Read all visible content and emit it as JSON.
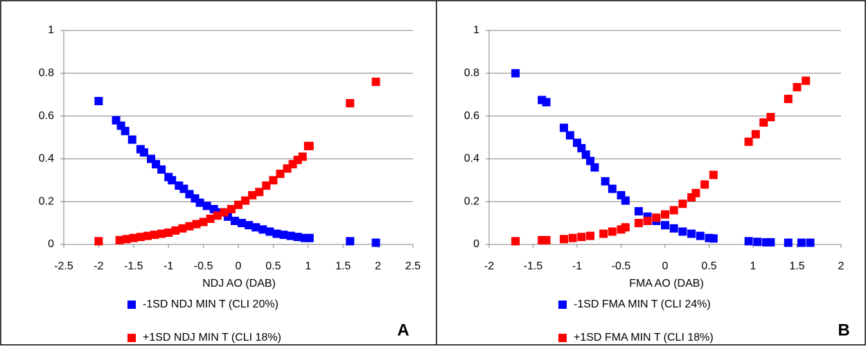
{
  "chart_data": [
    {
      "type": "scatter",
      "xlabel": "NDJ  AO  (DAB)",
      "panel_label": "A",
      "xlim": [
        -2.5,
        2.5
      ],
      "xticks": [
        -2.5,
        -2,
        -1.5,
        -1,
        -0.5,
        0,
        0.5,
        1,
        1.5,
        2,
        2.5
      ],
      "ylim": [
        0,
        1
      ],
      "yticks": [
        0,
        0.2,
        0.4,
        0.6,
        0.8,
        1
      ],
      "grid": true,
      "series": [
        {
          "name": "-1SD NDJ MIN T (CLI 20%)",
          "color": "#0000ff",
          "x": [
            -2,
            -1.75,
            -1.68,
            -1.62,
            -1.52,
            -1.4,
            -1.35,
            -1.25,
            -1.18,
            -1.1,
            -1.0,
            -0.95,
            -0.85,
            -0.78,
            -0.7,
            -0.62,
            -0.55,
            -0.45,
            -0.35,
            -0.25,
            -0.15,
            -0.05,
            0.05,
            0.15,
            0.25,
            0.35,
            0.45,
            0.55,
            0.65,
            0.75,
            0.85,
            0.95,
            1.02,
            1.6,
            1.97
          ],
          "values": [
            0.67,
            0.58,
            0.555,
            0.53,
            0.49,
            0.445,
            0.43,
            0.4,
            0.375,
            0.35,
            0.315,
            0.3,
            0.275,
            0.26,
            0.235,
            0.215,
            0.195,
            0.18,
            0.165,
            0.15,
            0.13,
            0.11,
            0.1,
            0.09,
            0.08,
            0.07,
            0.06,
            0.05,
            0.045,
            0.04,
            0.035,
            0.03,
            0.03,
            0.015,
            0.008
          ]
        },
        {
          "name": "+1SD NDJ MIN T (CLI 18%)",
          "color": "#ff0000",
          "x": [
            -2,
            -1.7,
            -1.6,
            -1.5,
            -1.4,
            -1.3,
            -1.2,
            -1.1,
            -1.0,
            -0.9,
            -0.8,
            -0.7,
            -0.6,
            -0.5,
            -0.4,
            -0.3,
            -0.2,
            -0.1,
            0,
            0.1,
            0.2,
            0.3,
            0.4,
            0.5,
            0.6,
            0.7,
            0.78,
            0.85,
            0.92,
            1.0,
            1.02,
            1.6,
            1.97
          ],
          "values": [
            0.015,
            0.02,
            0.025,
            0.03,
            0.035,
            0.04,
            0.045,
            0.05,
            0.055,
            0.065,
            0.075,
            0.085,
            0.095,
            0.105,
            0.12,
            0.135,
            0.15,
            0.165,
            0.185,
            0.205,
            0.23,
            0.245,
            0.275,
            0.3,
            0.33,
            0.355,
            0.375,
            0.395,
            0.41,
            0.46,
            0.46,
            0.66,
            0.76
          ]
        }
      ]
    },
    {
      "type": "scatter",
      "xlabel": "FMA  AO  (DAB)",
      "panel_label": "B",
      "xlim": [
        -2,
        2
      ],
      "xticks": [
        -2,
        -1.5,
        -1,
        -0.5,
        0,
        0.5,
        1,
        1.5,
        2
      ],
      "ylim": [
        0,
        1
      ],
      "yticks": [
        0,
        0.2,
        0.4,
        0.6,
        0.8,
        1
      ],
      "grid": true,
      "series": [
        {
          "name": "-1SD FMA MIN T (CLI 24%)",
          "color": "#0000ff",
          "x": [
            -1.7,
            -1.4,
            -1.35,
            -1.15,
            -1.08,
            -1.0,
            -0.95,
            -0.9,
            -0.85,
            -0.8,
            -0.68,
            -0.6,
            -0.5,
            -0.45,
            -0.3,
            -0.2,
            -0.1,
            0,
            0.1,
            0.2,
            0.3,
            0.4,
            0.5,
            0.55,
            0.95,
            1.05,
            1.15,
            1.2,
            1.4,
            1.55,
            1.65
          ],
          "values": [
            0.8,
            0.675,
            0.665,
            0.545,
            0.51,
            0.475,
            0.45,
            0.42,
            0.39,
            0.36,
            0.295,
            0.26,
            0.23,
            0.205,
            0.155,
            0.13,
            0.11,
            0.09,
            0.075,
            0.06,
            0.05,
            0.04,
            0.03,
            0.028,
            0.015,
            0.012,
            0.01,
            0.01,
            0.008,
            0.008,
            0.008
          ]
        },
        {
          "name": "+1SD FMA MIN T (CLI 18%)",
          "color": "#ff0000",
          "x": [
            -1.7,
            -1.4,
            -1.35,
            -1.15,
            -1.05,
            -0.95,
            -0.85,
            -0.7,
            -0.6,
            -0.5,
            -0.45,
            -0.3,
            -0.2,
            -0.1,
            0,
            0.1,
            0.2,
            0.3,
            0.35,
            0.45,
            0.55,
            0.95,
            1.03,
            1.12,
            1.2,
            1.4,
            1.5,
            1.6
          ],
          "values": [
            0.015,
            0.02,
            0.02,
            0.025,
            0.03,
            0.035,
            0.04,
            0.05,
            0.06,
            0.07,
            0.08,
            0.1,
            0.11,
            0.125,
            0.14,
            0.16,
            0.19,
            0.22,
            0.24,
            0.28,
            0.325,
            0.48,
            0.515,
            0.57,
            0.595,
            0.68,
            0.735,
            0.765
          ]
        }
      ]
    }
  ]
}
